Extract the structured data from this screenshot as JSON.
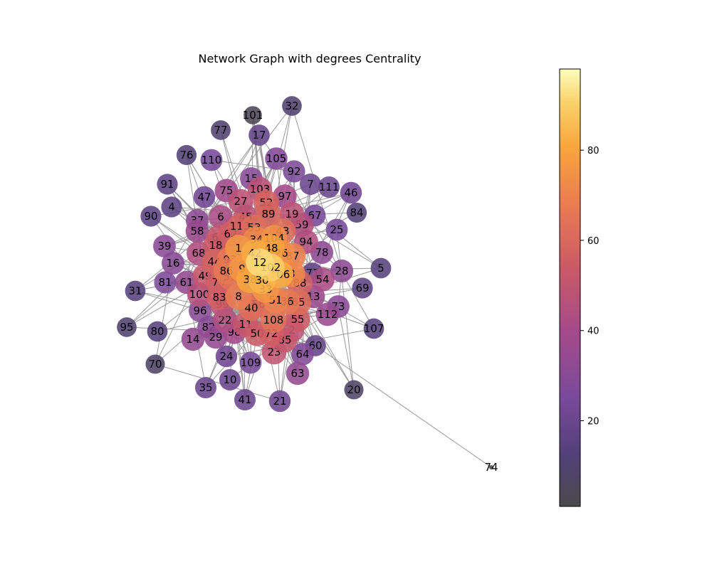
{
  "chart_data": {
    "type": "network",
    "title": "Network Graph with degrees Centrality",
    "colorbar": {
      "colormap": "inferno",
      "range": [
        1,
        98
      ],
      "ticks": [
        "20",
        "40",
        "60",
        "80"
      ]
    },
    "edge_color": "#999999",
    "nodes": [
      {
        "id": "101",
        "degree": 4
      },
      {
        "id": "32",
        "degree": 10
      },
      {
        "id": "77",
        "degree": 10
      },
      {
        "id": "17",
        "degree": 18
      },
      {
        "id": "76",
        "degree": 12
      },
      {
        "id": "110",
        "degree": 24
      },
      {
        "id": "105",
        "degree": 28
      },
      {
        "id": "92",
        "degree": 26
      },
      {
        "id": "15",
        "degree": 30
      },
      {
        "id": "91",
        "degree": 16
      },
      {
        "id": "7",
        "degree": 20
      },
      {
        "id": "111",
        "degree": 20
      },
      {
        "id": "46",
        "degree": 22
      },
      {
        "id": "103",
        "degree": 48
      },
      {
        "id": "97",
        "degree": 40
      },
      {
        "id": "47",
        "degree": 22
      },
      {
        "id": "75",
        "degree": 38
      },
      {
        "id": "27",
        "degree": 48
      },
      {
        "id": "52",
        "degree": 58
      },
      {
        "id": "4",
        "degree": 16
      },
      {
        "id": "84",
        "degree": 12
      },
      {
        "id": "89",
        "degree": 58
      },
      {
        "id": "19",
        "degree": 48
      },
      {
        "id": "67",
        "degree": 24
      },
      {
        "id": "90",
        "degree": 16
      },
      {
        "id": "6",
        "degree": 42
      },
      {
        "id": "45",
        "degree": 48
      },
      {
        "id": "37",
        "degree": 32
      },
      {
        "id": "53",
        "degree": 62
      },
      {
        "id": "113",
        "degree": 58
      },
      {
        "id": "59",
        "degree": 44
      },
      {
        "id": "25",
        "degree": 24
      },
      {
        "id": "58",
        "degree": 36
      },
      {
        "id": "62",
        "degree": 56
      },
      {
        "id": "43",
        "degree": 62
      },
      {
        "id": "66",
        "degree": 52
      },
      {
        "id": "34",
        "degree": 72
      },
      {
        "id": "104",
        "degree": 74
      },
      {
        "id": "94",
        "degree": 44
      },
      {
        "id": "39",
        "degree": 30
      },
      {
        "id": "18",
        "degree": 54
      },
      {
        "id": "1",
        "degree": 76
      },
      {
        "id": "48",
        "degree": 80
      },
      {
        "id": "26",
        "degree": 74
      },
      {
        "id": "78",
        "degree": 32
      },
      {
        "id": "68",
        "degree": 44
      },
      {
        "id": "42",
        "degree": 82
      },
      {
        "id": "87",
        "degree": 70
      },
      {
        "id": "93",
        "degree": 66
      },
      {
        "id": "16",
        "degree": 30
      },
      {
        "id": "44",
        "degree": 58
      },
      {
        "id": "12",
        "degree": 92
      },
      {
        "id": "102",
        "degree": 90
      },
      {
        "id": "5",
        "degree": 14
      },
      {
        "id": "9",
        "degree": 76
      },
      {
        "id": "86",
        "degree": 66
      },
      {
        "id": "106",
        "degree": 82
      },
      {
        "id": "3",
        "degree": 72
      },
      {
        "id": "71",
        "degree": 18
      },
      {
        "id": "28",
        "degree": 32
      },
      {
        "id": "54",
        "degree": 42
      },
      {
        "id": "49",
        "degree": 52
      },
      {
        "id": "79",
        "degree": 56
      },
      {
        "id": "57",
        "degree": 64
      },
      {
        "id": "38",
        "degree": 80
      },
      {
        "id": "30",
        "degree": 84
      },
      {
        "id": "88",
        "degree": 58
      },
      {
        "id": "81",
        "degree": 26
      },
      {
        "id": "61",
        "degree": 34
      },
      {
        "id": "33",
        "degree": 76
      },
      {
        "id": "69",
        "degree": 16
      },
      {
        "id": "100",
        "degree": 46
      },
      {
        "id": "8",
        "degree": 68
      },
      {
        "id": "83",
        "degree": 56
      },
      {
        "id": "51",
        "degree": 70
      },
      {
        "id": "13",
        "degree": 36
      },
      {
        "id": "31",
        "degree": 14
      },
      {
        "id": "36",
        "degree": 66
      },
      {
        "id": "65",
        "degree": 62
      },
      {
        "id": "99",
        "degree": 48
      },
      {
        "id": "56",
        "degree": 62
      },
      {
        "id": "73",
        "degree": 30
      },
      {
        "id": "40",
        "degree": 62
      },
      {
        "id": "96",
        "degree": 30
      },
      {
        "id": "112",
        "degree": 36
      },
      {
        "id": "55",
        "degree": 54
      },
      {
        "id": "22",
        "degree": 44
      },
      {
        "id": "108",
        "degree": 64
      },
      {
        "id": "95",
        "degree": 10
      },
      {
        "id": "82",
        "degree": 30
      },
      {
        "id": "11",
        "degree": 52
      },
      {
        "id": "2",
        "degree": 48
      },
      {
        "id": "107",
        "degree": 14
      },
      {
        "id": "80",
        "degree": 14
      },
      {
        "id": "72",
        "degree": 56
      },
      {
        "id": "50",
        "degree": 54
      },
      {
        "id": "98",
        "degree": 40
      },
      {
        "id": "29",
        "degree": 34
      },
      {
        "id": "85",
        "degree": 52
      },
      {
        "id": "14",
        "degree": 34
      },
      {
        "id": "60",
        "degree": 18
      },
      {
        "id": "23",
        "degree": 50
      },
      {
        "id": "64",
        "degree": 28
      },
      {
        "id": "24",
        "degree": 22
      },
      {
        "id": "109",
        "degree": 24
      },
      {
        "id": "70",
        "degree": 8
      },
      {
        "id": "63",
        "degree": 34
      },
      {
        "id": "10",
        "degree": 20
      },
      {
        "id": "20",
        "degree": 8
      },
      {
        "id": "35",
        "degree": 20
      },
      {
        "id": "41",
        "degree": 20
      },
      {
        "id": "21",
        "degree": 22
      },
      {
        "id": "74",
        "degree": 1
      }
    ]
  }
}
